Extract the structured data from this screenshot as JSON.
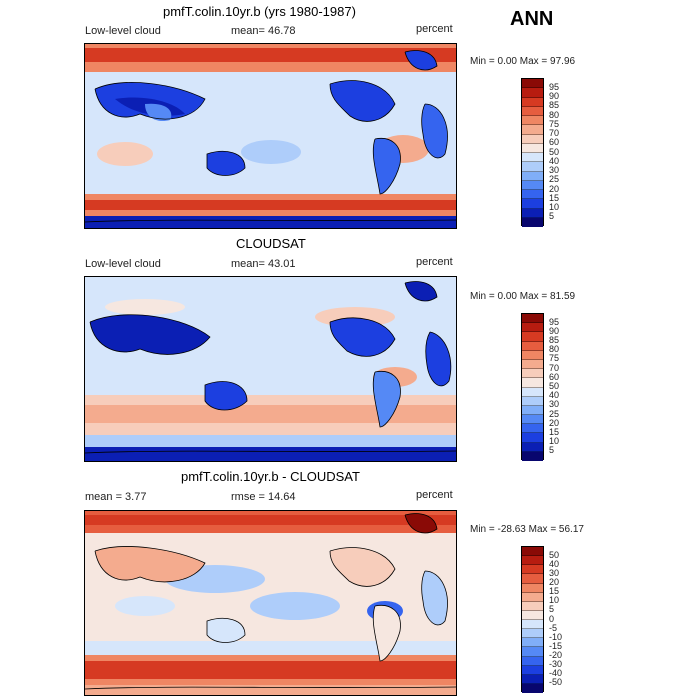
{
  "header": {
    "season": "ANN"
  },
  "panels": [
    {
      "title": "pmfT.colin.10yr.b (yrs 1980-1987)",
      "left_label": "Low-level cloud",
      "mid_label": "mean=  46.78",
      "unit": "percent",
      "minmax": "Min =    0.00 Max =   97.96",
      "colorbar_ticks": [
        "95",
        "90",
        "85",
        "80",
        "75",
        "70",
        "60",
        "50",
        "40",
        "30",
        "25",
        "20",
        "15",
        "10",
        "5"
      ]
    },
    {
      "title": "CLOUDSAT",
      "left_label": "Low-level cloud",
      "mid_label": "mean=  43.01",
      "unit": "percent",
      "minmax": "Min =    0.00 Max =   81.59",
      "colorbar_ticks": [
        "95",
        "90",
        "85",
        "80",
        "75",
        "70",
        "60",
        "50",
        "40",
        "30",
        "25",
        "20",
        "15",
        "10",
        "5"
      ]
    },
    {
      "title": "pmfT.colin.10yr.b - CLOUDSAT",
      "left_label": "mean =    3.77",
      "mid_label": "rmse =  14.64",
      "unit": "percent",
      "minmax": "Min = -28.63 Max =  56.17",
      "colorbar_ticks": [
        "50",
        "40",
        "30",
        "20",
        "15",
        "10",
        "5",
        "0",
        "-5",
        "-10",
        "-15",
        "-20",
        "-30",
        "-40",
        "-50"
      ]
    }
  ],
  "colors": {
    "abs_scale": [
      "#08066e",
      "#0b1fb4",
      "#1c3fe0",
      "#3564ef",
      "#5589f5",
      "#80aef8",
      "#aecdfa",
      "#d6e6fb",
      "#f6e7e0",
      "#f7cdbb",
      "#f4ab8e",
      "#ef8663",
      "#e65d3f",
      "#d63a22",
      "#b71c10",
      "#8a0a06"
    ],
    "diff_scale": [
      "#08066e",
      "#0b1fb4",
      "#1c3fe0",
      "#3564ef",
      "#5589f5",
      "#80aef8",
      "#aecdfa",
      "#d6e6fb",
      "#f6e7e0",
      "#f7cdbb",
      "#f4ab8e",
      "#ef8663",
      "#e65d3f",
      "#d63a22",
      "#b71c10",
      "#8a0a06"
    ]
  }
}
